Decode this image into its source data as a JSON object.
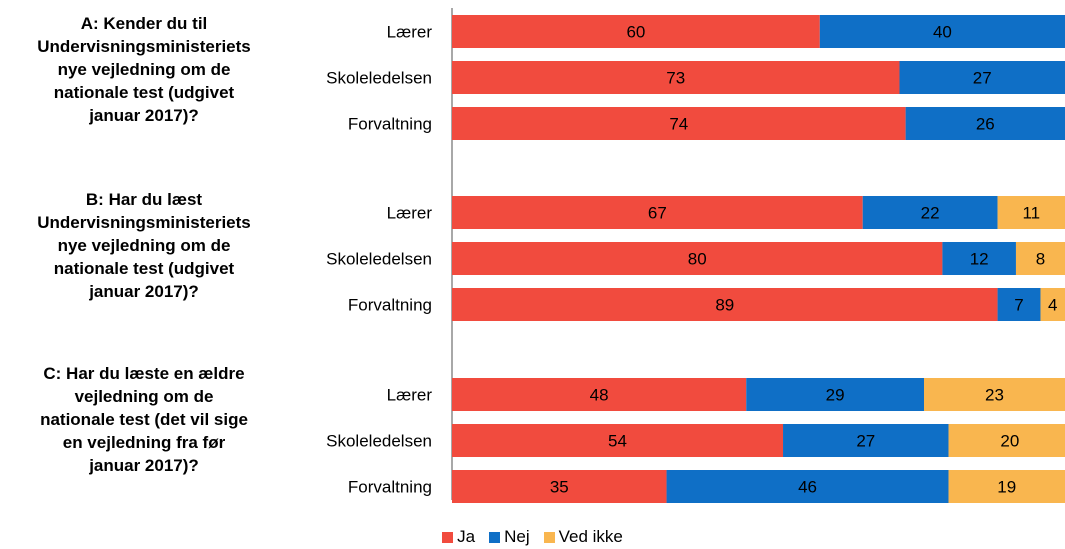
{
  "chart_data": {
    "type": "bar",
    "orientation": "horizontal",
    "stacked": true,
    "xlim": [
      0,
      100
    ],
    "legend_position": "bottom",
    "series": [
      {
        "name": "Ja",
        "color": "#f14b3e"
      },
      {
        "name": "Nej",
        "color": "#0f6fc6"
      },
      {
        "name": "Ved ikke",
        "color": "#f9b64f"
      }
    ],
    "groups": [
      {
        "question": "A: Kender du til\nUndervisningsministeriets\nnye vejledning om de\nnationale test (udgivet\njanuar 2017)?",
        "rows": [
          {
            "label": "Lærer",
            "values": [
              60,
              40,
              0
            ]
          },
          {
            "label": "Skoleledelsen",
            "values": [
              73,
              27,
              0
            ]
          },
          {
            "label": "Forvaltning",
            "values": [
              74,
              26,
              0
            ]
          }
        ]
      },
      {
        "question": "B: Har du læst\nUndervisningsministeriets\nnye vejledning om de\nnationale test (udgivet\njanuar 2017)?",
        "rows": [
          {
            "label": "Lærer",
            "values": [
              67,
              22,
              11
            ]
          },
          {
            "label": "Skoleledelsen",
            "values": [
              80,
              12,
              8
            ]
          },
          {
            "label": "Forvaltning",
            "values": [
              89,
              7,
              4
            ]
          }
        ]
      },
      {
        "question": "C: Har du læste en ældre\nvejledning om de\nnationale test (det vil sige\nen vejledning fra før\njanuar 2017)?",
        "rows": [
          {
            "label": "Lærer",
            "values": [
              48,
              29,
              23
            ]
          },
          {
            "label": "Skoleledelsen",
            "values": [
              54,
              27,
              20
            ]
          },
          {
            "label": "Forvaltning",
            "values": [
              35,
              46,
              19
            ]
          }
        ]
      }
    ]
  }
}
